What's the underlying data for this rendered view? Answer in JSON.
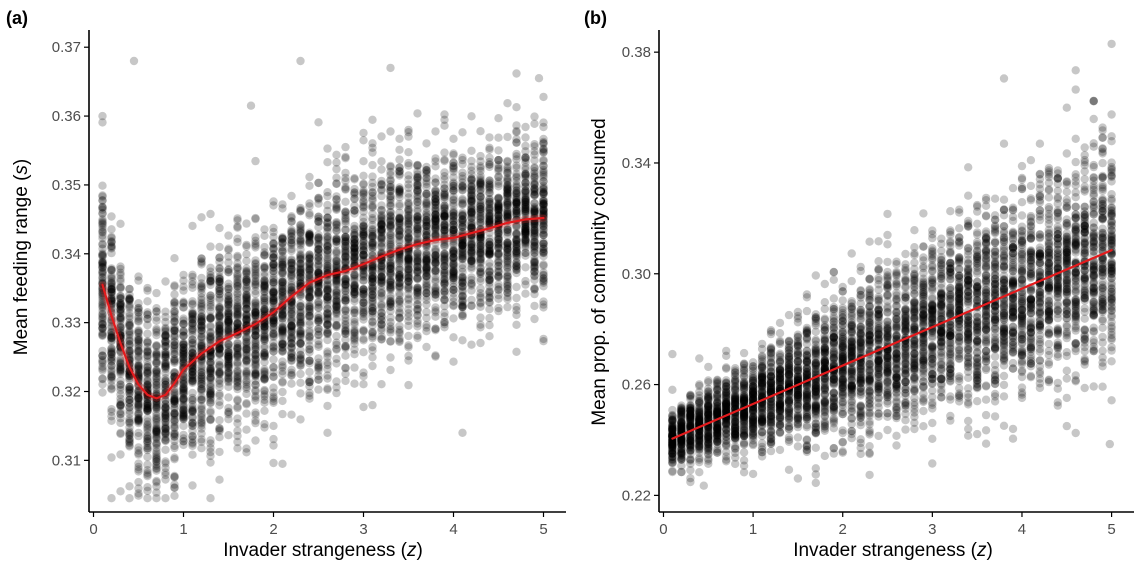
{
  "colors": {
    "points": "#000000",
    "point_alpha": 0.22,
    "trend": "#e41a1c",
    "axis": "#000000"
  },
  "chart_data": [
    {
      "panel_label": "(a)",
      "type": "scatter",
      "xlabel_prefix": "Invader strangeness (",
      "xlabel_var": "z",
      "xlabel_suffix": ")",
      "ylabel_prefix": "Mean feeding range (",
      "ylabel_var": "s",
      "ylabel_suffix": ")",
      "xlim": [
        -0.05,
        5.25
      ],
      "ylim": [
        0.3025,
        0.3725
      ],
      "x_ticks": [
        0,
        1,
        2,
        3,
        4,
        5
      ],
      "y_ticks": [
        0.31,
        0.32,
        0.33,
        0.34,
        0.35,
        0.36,
        0.37
      ],
      "y_tick_labels": [
        "0.31",
        "0.32",
        "0.33",
        "0.34",
        "0.35",
        "0.36",
        "0.37"
      ],
      "grid": false,
      "n_points_approx": 5000,
      "x_range": [
        0.1,
        5.0
      ],
      "trend": {
        "type": "loess",
        "points": [
          [
            0.1,
            0.3355
          ],
          [
            0.2,
            0.331
          ],
          [
            0.3,
            0.327
          ],
          [
            0.4,
            0.3235
          ],
          [
            0.5,
            0.321
          ],
          [
            0.6,
            0.3195
          ],
          [
            0.7,
            0.319
          ],
          [
            0.8,
            0.3195
          ],
          [
            0.9,
            0.3212
          ],
          [
            1.0,
            0.3232
          ],
          [
            1.2,
            0.3255
          ],
          [
            1.4,
            0.3273
          ],
          [
            1.6,
            0.3285
          ],
          [
            1.8,
            0.3298
          ],
          [
            2.0,
            0.3315
          ],
          [
            2.2,
            0.3338
          ],
          [
            2.4,
            0.3358
          ],
          [
            2.6,
            0.3369
          ],
          [
            2.8,
            0.3375
          ],
          [
            3.0,
            0.3385
          ],
          [
            3.2,
            0.3396
          ],
          [
            3.4,
            0.3406
          ],
          [
            3.6,
            0.3414
          ],
          [
            3.8,
            0.342
          ],
          [
            4.0,
            0.3423
          ],
          [
            4.2,
            0.343
          ],
          [
            4.4,
            0.3437
          ],
          [
            4.6,
            0.3445
          ],
          [
            4.8,
            0.345
          ],
          [
            5.0,
            0.3452
          ]
        ]
      },
      "spread": [
        [
          0.1,
          0.0085
        ],
        [
          0.5,
          0.0065
        ],
        [
          1.0,
          0.0065
        ],
        [
          2.0,
          0.007
        ],
        [
          3.0,
          0.0072
        ],
        [
          4.0,
          0.0062
        ],
        [
          5.0,
          0.0058
        ]
      ],
      "outliers": [
        [
          0.45,
          0.368
        ],
        [
          2.3,
          0.368
        ],
        [
          0.1,
          0.36
        ],
        [
          0.3,
          0.3055
        ],
        [
          0.5,
          0.3052
        ],
        [
          1.75,
          0.3615
        ],
        [
          4.1,
          0.314
        ],
        [
          4.95,
          0.3655
        ],
        [
          3.3,
          0.367
        ],
        [
          2.1,
          0.3095
        ]
      ]
    },
    {
      "panel_label": "(b)",
      "type": "scatter",
      "xlabel_prefix": "Invader strangeness (",
      "xlabel_var": "z",
      "xlabel_suffix": ")",
      "ylabel_prefix": "Mean prop. of community consumed",
      "ylabel_var": "",
      "ylabel_suffix": "",
      "xlim": [
        -0.05,
        5.25
      ],
      "ylim": [
        0.214,
        0.388
      ],
      "x_ticks": [
        0,
        1,
        2,
        3,
        4,
        5
      ],
      "y_ticks": [
        0.22,
        0.26,
        0.3,
        0.34,
        0.38
      ],
      "y_tick_labels": [
        "0.22",
        "0.26",
        "0.30",
        "0.34",
        "0.38"
      ],
      "grid": false,
      "n_points_approx": 5000,
      "x_range": [
        0.1,
        5.0
      ],
      "trend": {
        "type": "linear",
        "points": [
          [
            0.1,
            0.2405
          ],
          [
            5.0,
            0.3085
          ]
        ]
      },
      "spread": [
        [
          0.1,
          0.005
        ],
        [
          0.5,
          0.0065
        ],
        [
          1.0,
          0.009
        ],
        [
          2.0,
          0.013
        ],
        [
          3.0,
          0.016
        ],
        [
          4.0,
          0.018
        ],
        [
          5.0,
          0.02
        ]
      ],
      "outliers": [
        [
          5.0,
          0.383
        ],
        [
          3.8,
          0.3705
        ],
        [
          4.98,
          0.2385
        ],
        [
          0.1,
          0.271
        ],
        [
          3.0,
          0.2315
        ],
        [
          1.7,
          0.2245
        ],
        [
          0.45,
          0.2235
        ],
        [
          4.6,
          0.3665
        ]
      ]
    }
  ]
}
